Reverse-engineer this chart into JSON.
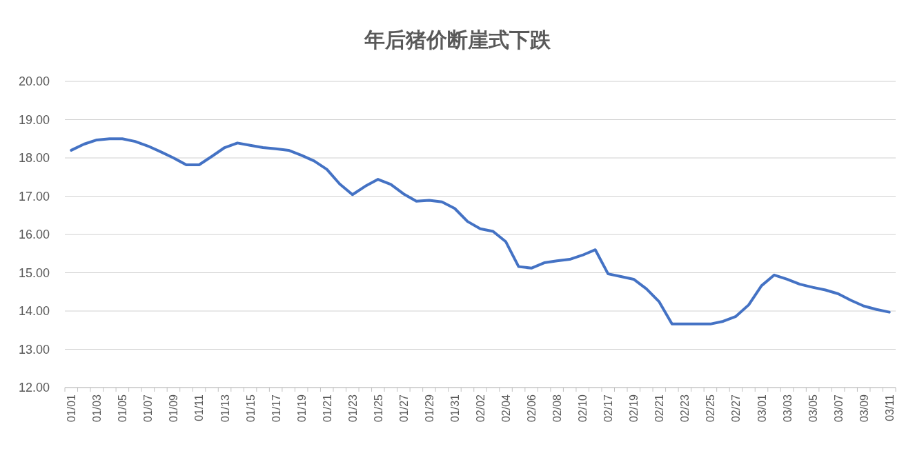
{
  "chart_data": {
    "type": "line",
    "title": "年后猪价断崖式下跌",
    "categories": [
      "01/01",
      null,
      "01/03",
      null,
      "01/05",
      null,
      "01/07",
      null,
      "01/09",
      null,
      "01/11",
      null,
      "01/13",
      null,
      "01/15",
      null,
      "01/17",
      null,
      "01/19",
      null,
      "01/21",
      null,
      "01/23",
      null,
      "01/25",
      null,
      "01/27",
      null,
      "01/29",
      null,
      "01/31",
      null,
      "02/02",
      null,
      "02/04",
      null,
      "02/06",
      null,
      "02/08",
      null,
      "02/10",
      null,
      "02/17",
      null,
      "02/19",
      null,
      "02/21",
      null,
      "02/23",
      null,
      "02/25",
      null,
      "02/27",
      null,
      "03/01",
      null,
      "03/03",
      null,
      "03/05",
      null,
      "03/07",
      null,
      "03/09",
      null,
      "03/11"
    ],
    "series": [
      {
        "color": "#4472c4",
        "values": [
          18.2,
          18.36,
          18.47,
          18.5,
          18.5,
          18.43,
          18.31,
          18.16,
          18.0,
          17.82,
          17.82,
          18.04,
          18.27,
          18.39,
          18.33,
          18.27,
          18.24,
          18.2,
          18.07,
          17.92,
          17.7,
          17.32,
          17.04,
          17.26,
          17.44,
          17.31,
          17.06,
          16.87,
          16.89,
          16.85,
          16.68,
          16.34,
          16.15,
          16.08,
          15.81,
          15.16,
          15.12,
          15.26,
          15.31,
          15.35,
          15.46,
          15.6,
          14.97,
          14.9,
          14.83,
          14.58,
          14.24,
          13.66,
          13.66,
          13.66,
          13.66,
          13.73,
          13.86,
          14.16,
          14.66,
          14.94,
          14.83,
          14.7,
          14.62,
          14.55,
          14.45,
          14.28,
          14.13,
          14.04,
          13.97
        ]
      }
    ],
    "ylim": [
      12,
      20
    ],
    "yticks": [
      {
        "value": 12,
        "label": "12.00"
      },
      {
        "value": 13,
        "label": "13.00"
      },
      {
        "value": 14,
        "label": "14.00"
      },
      {
        "value": 15,
        "label": "15.00"
      },
      {
        "value": 16,
        "label": "16.00"
      },
      {
        "value": 17,
        "label": "17.00"
      },
      {
        "value": 18,
        "label": "18.00"
      },
      {
        "value": 19,
        "label": "19.00"
      },
      {
        "value": 20,
        "label": "20.00"
      }
    ],
    "grid": "y"
  }
}
